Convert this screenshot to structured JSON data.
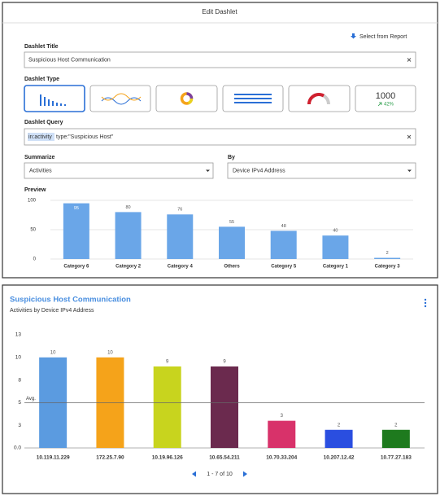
{
  "dialog": {
    "title": "Edit Dashlet",
    "select_from_report": "Select from Report",
    "title_label": "Dashlet Title",
    "title_value": "Suspicious Host Communication",
    "type_label": "Dashlet Type",
    "type_number": "1000",
    "type_delta": "42%",
    "query_label": "Dashlet Query",
    "query_keyword": "in:activity",
    "query_rest": "type:\"Suspicious Host\"",
    "summarize_label": "Summarize",
    "summarize_value": "Activities",
    "by_label": "By",
    "by_value": "Device IPv4 Address",
    "preview_label": "Preview"
  },
  "chart_data": [
    {
      "type": "bar",
      "categories": [
        "Category 6",
        "Category 2",
        "Category 4",
        "Others",
        "Category 5",
        "Category 1",
        "Category 3"
      ],
      "values": [
        95,
        80,
        76,
        55,
        48,
        40,
        2
      ],
      "color": "#6aa6e8",
      "ylim": [
        0,
        100
      ],
      "yticks": [
        0,
        50,
        100
      ],
      "grid": true
    },
    {
      "type": "bar",
      "title": "Suspicious Host Communication",
      "subtitle": "Activities by Device IPv4 Address",
      "categories": [
        "10.119.11.229",
        "172.25.7.90",
        "10.19.96.126",
        "10.65.54.211",
        "10.70.33.204",
        "10.207.12.42",
        "10.77.27.183"
      ],
      "values": [
        10,
        10,
        9,
        9,
        3,
        2,
        2
      ],
      "colors": [
        "#5b9be0",
        "#f5a31a",
        "#c8d41e",
        "#6b2a4e",
        "#d8326a",
        "#2a4ee0",
        "#1e7a1e"
      ],
      "ylim": [
        0,
        12.5
      ],
      "yticks": [
        {
          "value": 0,
          "label": "0.0"
        },
        {
          "value": 2.5,
          "label": "3"
        },
        {
          "value": 5,
          "label": "5"
        },
        {
          "value": 7.5,
          "label": "8"
        },
        {
          "value": 10,
          "label": "10"
        },
        {
          "value": 12.5,
          "label": "13"
        }
      ],
      "grid": false,
      "average": {
        "label": "Avg.",
        "value": 5
      }
    }
  ],
  "pagination": {
    "text": "1 - 7 of 10"
  }
}
